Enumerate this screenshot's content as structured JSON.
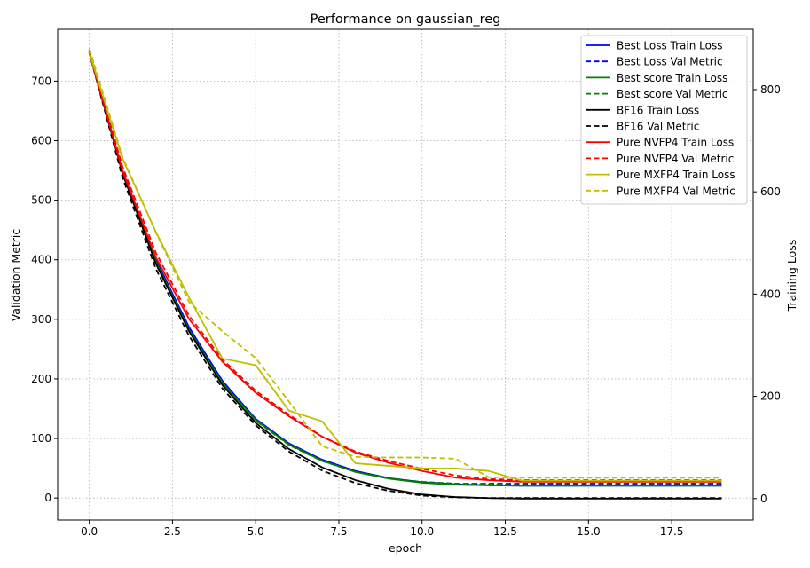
{
  "chart_data": {
    "type": "line",
    "title": "Performance on gaussian_reg",
    "xlabel": "epoch",
    "ylabel_left": "Validation Metric",
    "ylabel_right": "Training Loss",
    "xlim": [
      -0.95,
      19.95
    ],
    "ylim_left": [
      -37,
      787
    ],
    "ylim_right": [
      -42,
      918
    ],
    "xticks": [
      0.0,
      2.5,
      5.0,
      7.5,
      10.0,
      12.5,
      15.0,
      17.5
    ],
    "xtick_labels": [
      "0.0",
      "2.5",
      "5.0",
      "7.5",
      "10.0",
      "12.5",
      "15.0",
      "17.5"
    ],
    "yticks_left": [
      0,
      100,
      200,
      300,
      400,
      500,
      600,
      700
    ],
    "ytick_labels_left": [
      "0",
      "100",
      "200",
      "300",
      "400",
      "500",
      "600",
      "700"
    ],
    "yticks_right": [
      0,
      200,
      400,
      600,
      800
    ],
    "ytick_labels_right": [
      "0",
      "200",
      "400",
      "600",
      "800"
    ],
    "grid": true,
    "legend_position": "top-right",
    "x": [
      0,
      1,
      2,
      3,
      4,
      5,
      6,
      7,
      8,
      9,
      10,
      11,
      12,
      13,
      14,
      15,
      16,
      17,
      18,
      19
    ],
    "series": [
      {
        "name": "Best Loss Train Loss",
        "axis": "right",
        "color": "#0000ff",
        "dash": false,
        "values": [
          873,
          641,
          467,
          335,
          230,
          156,
          108,
          76,
          54,
          40,
          32,
          28,
          26,
          25,
          25,
          25,
          25,
          25,
          25,
          25
        ]
      },
      {
        "name": "Best Loss Val Metric",
        "axis": "left",
        "color": "#0000ff",
        "dash": true,
        "values": [
          752,
          550,
          400,
          285,
          197,
          131,
          90,
          63,
          44,
          33,
          27,
          24,
          24,
          24,
          24,
          24,
          24,
          24,
          24,
          24
        ]
      },
      {
        "name": "Best score Train Loss",
        "axis": "right",
        "color": "#008000",
        "dash": false,
        "values": [
          873,
          638,
          463,
          330,
          226,
          154,
          106,
          74,
          52,
          39,
          31,
          27,
          26,
          25,
          25,
          25,
          25,
          25,
          25,
          25
        ]
      },
      {
        "name": "Best score Val Metric",
        "axis": "left",
        "color": "#008000",
        "dash": true,
        "values": [
          752,
          545,
          393,
          280,
          193,
          130,
          89,
          62,
          44,
          33,
          27,
          24,
          23,
          22,
          22,
          22,
          22,
          22,
          22,
          22
        ]
      },
      {
        "name": "BF16 Train Loss",
        "axis": "right",
        "color": "#000000",
        "dash": false,
        "values": [
          873,
          636,
          460,
          327,
          222,
          148,
          97,
          61,
          36,
          19,
          8,
          3,
          1,
          0,
          0,
          0,
          0,
          0,
          0,
          0
        ]
      },
      {
        "name": "BF16 Val Metric",
        "axis": "left",
        "color": "#000000",
        "dash": true,
        "values": [
          748,
          538,
          385,
          272,
          184,
          122,
          78,
          46,
          25,
          12,
          4,
          1,
          0,
          0,
          0,
          0,
          0,
          0,
          0,
          0
        ]
      },
      {
        "name": "Pure NVFP4 Train Loss",
        "axis": "right",
        "color": "#ff0000",
        "dash": false,
        "values": [
          873,
          640,
          472,
          351,
          268,
          207,
          161,
          121,
          90,
          70,
          54,
          41,
          36,
          33,
          33,
          33,
          33,
          33,
          33,
          33
        ]
      },
      {
        "name": "Pure NVFP4 Val Metric",
        "axis": "left",
        "color": "#ff0000",
        "dash": true,
        "values": [
          752,
          556,
          412,
          306,
          233,
          180,
          140,
          103,
          78,
          62,
          49,
          38,
          32,
          30,
          30,
          30,
          30,
          30,
          30,
          30
        ]
      },
      {
        "name": "Pure MXFP4 Train Loss",
        "axis": "right",
        "color": "#bfbf00",
        "dash": false,
        "values": [
          873,
          665,
          522,
          393,
          274,
          261,
          172,
          151,
          69,
          64,
          59,
          59,
          54,
          35,
          35,
          35,
          35,
          35,
          35,
          35
        ]
      },
      {
        "name": "Pure MXFP4 Val Metric",
        "axis": "left",
        "color": "#bfbf00",
        "dash": true,
        "values": [
          755,
          572,
          446,
          329,
          280,
          235,
          162,
          87,
          69,
          68,
          68,
          66,
          35,
          34,
          34,
          34,
          34,
          34,
          34,
          34
        ]
      }
    ]
  }
}
